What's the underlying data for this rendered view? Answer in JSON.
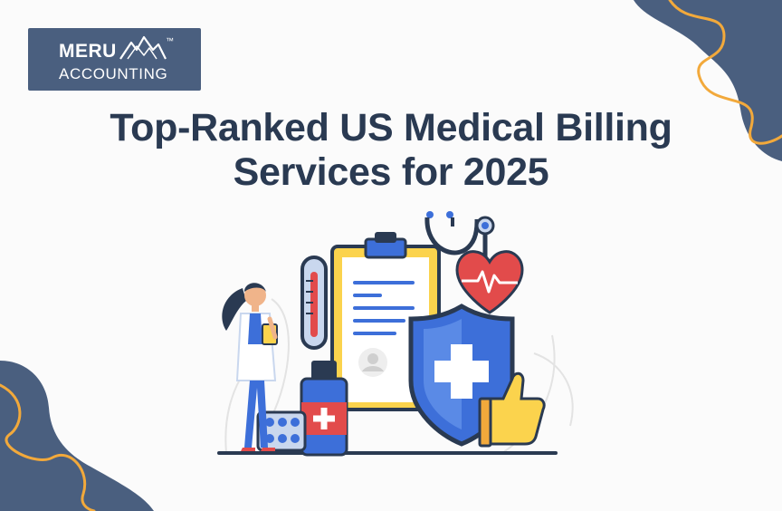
{
  "logo": {
    "line1": "MERU",
    "line2": "ACCOUNTING",
    "trademark": "™",
    "bg_color": "#4a5f7f"
  },
  "headline": {
    "line1": "Top-Ranked US Medical Billing",
    "line2": "Services for 2025",
    "color": "#2a3a52"
  },
  "illustration": {
    "icons": [
      "doctor-figure",
      "thermometer-icon",
      "clipboard-icon",
      "stethoscope-icon",
      "heart-icon",
      "shield-cross-icon",
      "thumbs-up-icon",
      "medicine-bottle-icon",
      "pill-blister-icon"
    ]
  },
  "decor": {
    "blob_color": "#4a5f7f",
    "squiggle_color": "#f2a93b"
  }
}
